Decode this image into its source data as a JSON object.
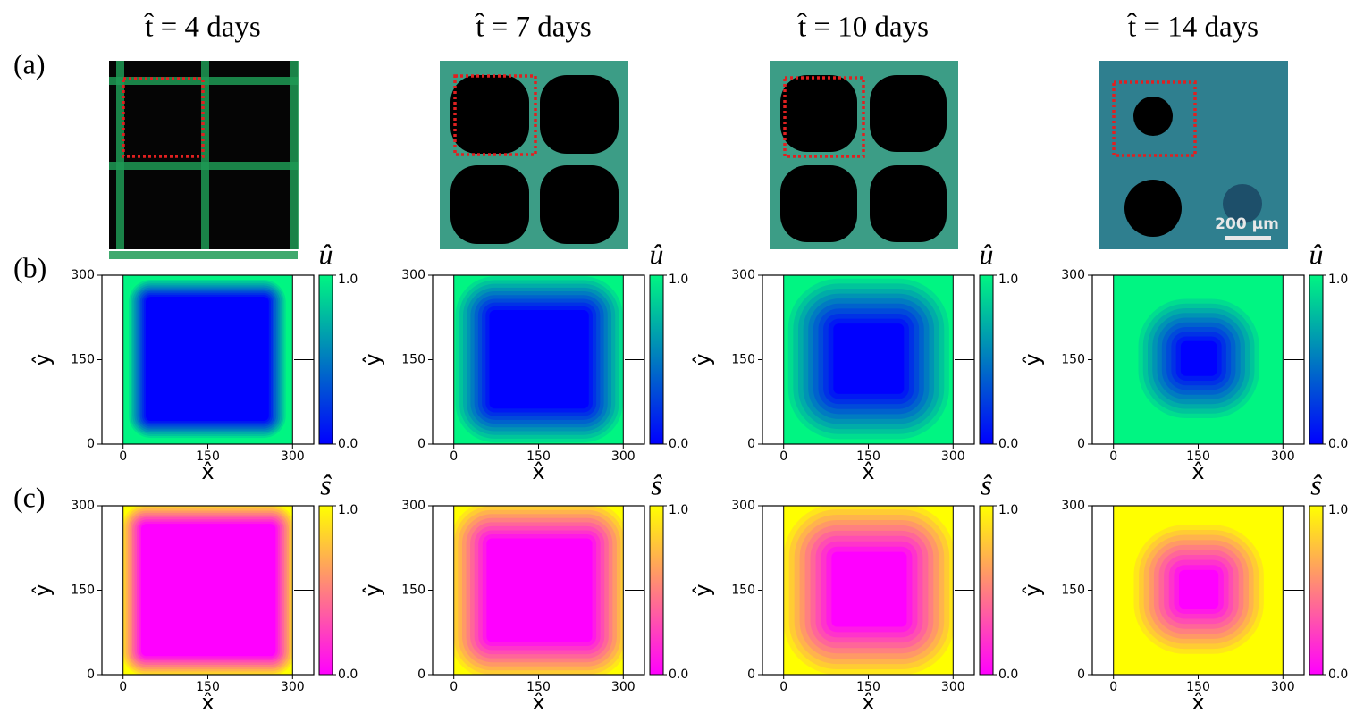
{
  "panel_labels": [
    "(a)",
    "(b)",
    "(c)"
  ],
  "scale_bar": "200 μm",
  "axes": {
    "xlabel": "x̂",
    "ylabel": "ŷ",
    "xlim": [
      -37.5,
      337.5
    ],
    "ylim": [
      0,
      300
    ],
    "xticks": [
      0,
      150,
      300
    ],
    "yticks": [
      0,
      150,
      300
    ]
  },
  "rows": [
    {
      "colorbar_label": "û",
      "cmap": [
        "#0000ff",
        "#00f582"
      ],
      "clim": [
        0,
        1
      ],
      "cbar_ticks": [
        {
          "value": 0,
          "label": "0.0"
        },
        {
          "value": 1,
          "label": "1.0"
        }
      ]
    },
    {
      "colorbar_label": "ŝ",
      "cmap": [
        "#ff00ff",
        "#ffff00"
      ],
      "clim": [
        0,
        1
      ],
      "cbar_ticks": [
        {
          "value": 0,
          "label": "0.0"
        },
        {
          "value": 1,
          "label": "1.0"
        }
      ]
    }
  ],
  "columns": [
    {
      "title": "t̂ = 4 days",
      "fields": [
        {
          "void": [
            40,
            258,
            41,
            262
          ],
          "front": 30
        },
        {
          "void": [
            32,
            270,
            33,
            268
          ],
          "front": 35
        }
      ]
    },
    {
      "title": "t̂ = 7 days",
      "fields": [
        {
          "void": [
            63,
            239,
            63,
            238
          ],
          "front": 60
        },
        {
          "void": [
            58,
            245,
            58,
            242
          ],
          "front": 65
        }
      ]
    },
    {
      "title": "t̂ = 10 days",
      "fields": [
        {
          "void": [
            88,
            213,
            89,
            214
          ],
          "front": 80
        },
        {
          "void": [
            85,
            218,
            85,
            218
          ],
          "front": 85
        }
      ]
    },
    {
      "title": "t̂ = 14 days",
      "fields": [
        {
          "void": [
            119,
            183,
            121,
            183
          ],
          "front": 75
        },
        {
          "void": [
            116,
            186,
            117,
            186
          ],
          "front": 80
        }
      ]
    }
  ]
}
